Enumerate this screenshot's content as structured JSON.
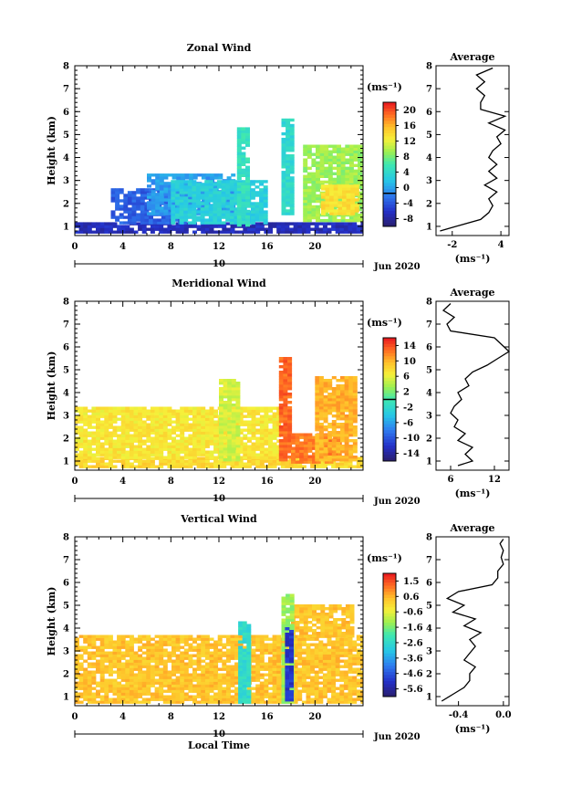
{
  "chart_data": [
    {
      "type": "heatmap",
      "title": "Zonal Wind",
      "ylabel": "Height (km)",
      "xlabel": "",
      "xlim": [
        0,
        24
      ],
      "ylim": [
        0.6,
        8
      ],
      "xticks": [
        0,
        4,
        8,
        12,
        16,
        20
      ],
      "yticks": [
        1,
        2,
        3,
        4,
        5,
        6,
        7,
        8
      ],
      "date_label": "10",
      "date_right_label": "Jun 2020",
      "colorbar": {
        "label": "(ms⁻¹)",
        "range": [
          -8,
          22
        ],
        "ticks": [
          "20",
          "16",
          "12",
          "8",
          "4",
          "0",
          "-4",
          "-8"
        ],
        "marker": 0
      },
      "regions": [
        {
          "t0": 0,
          "t1": 24,
          "h0": 0.7,
          "h1": 1.1,
          "v": -5
        },
        {
          "t0": 3,
          "t1": 9,
          "h0": 1.1,
          "h1": 2.6,
          "v": -2
        },
        {
          "t0": 6,
          "t1": 13,
          "h0": 1.5,
          "h1": 3.2,
          "v": 1
        },
        {
          "t0": 8,
          "t1": 16,
          "h0": 1.1,
          "h1": 3.0,
          "v": 4
        },
        {
          "t0": 13.5,
          "t1": 14.5,
          "h0": 1.0,
          "h1": 5.3,
          "v": 6
        },
        {
          "t0": 17.2,
          "t1": 18.2,
          "h0": 1.5,
          "h1": 5.6,
          "v": 5
        },
        {
          "t0": 19,
          "t1": 24,
          "h0": 1.2,
          "h1": 4.5,
          "v": 10
        },
        {
          "t0": 20.5,
          "t1": 23.5,
          "h0": 1.5,
          "h1": 2.8,
          "v": 14
        }
      ],
      "profile": {
        "title": "Average",
        "xlabel": "(ms⁻¹)",
        "xlim": [
          -4,
          5
        ],
        "xticks": [
          -2,
          4
        ],
        "h": [
          0.8,
          1.0,
          1.3,
          1.6,
          1.9,
          2.2,
          2.5,
          2.8,
          3.1,
          3.4,
          3.7,
          4.0,
          4.3,
          4.6,
          4.9,
          5.2,
          5.5,
          5.8,
          6.1,
          6.4,
          6.7,
          7.0,
          7.3,
          7.6,
          7.9
        ],
        "values": [
          -3.5,
          -1.5,
          1.5,
          2.5,
          3.0,
          2.5,
          3.5,
          2.0,
          3.5,
          2.5,
          3.5,
          2.5,
          3.0,
          4.0,
          3.5,
          4.5,
          2.5,
          4.5,
          1.5,
          1.5,
          2.0,
          1.0,
          2.0,
          1.0,
          3.0
        ]
      }
    },
    {
      "type": "heatmap",
      "title": "Meridional Wind",
      "ylabel": "Height (km)",
      "xlabel": "",
      "xlim": [
        0,
        24
      ],
      "ylim": [
        0.6,
        8
      ],
      "xticks": [
        0,
        4,
        8,
        12,
        16,
        20
      ],
      "yticks": [
        1,
        2,
        3,
        4,
        5,
        6,
        7,
        8
      ],
      "date_label": "10",
      "date_right_label": "Jun 2020",
      "colorbar": {
        "label": "(ms⁻¹)",
        "range": [
          -16,
          16
        ],
        "ticks": [
          "14",
          "10",
          "6",
          "2",
          "-2",
          "-6",
          "-10",
          "-14"
        ],
        "marker": 0
      },
      "regions": [
        {
          "t0": 0,
          "t1": 24,
          "h0": 0.7,
          "h1": 1.1,
          "v": 8
        },
        {
          "t0": 0,
          "t1": 17,
          "h0": 1.1,
          "h1": 3.3,
          "v": 7
        },
        {
          "t0": 12,
          "t1": 13.5,
          "h0": 1.0,
          "h1": 4.5,
          "v": 5
        },
        {
          "t0": 17,
          "t1": 18,
          "h0": 1.0,
          "h1": 5.5,
          "v": 13
        },
        {
          "t0": 18,
          "t1": 22,
          "h0": 0.9,
          "h1": 2.2,
          "v": 12
        },
        {
          "t0": 20,
          "t1": 23.5,
          "h0": 1.0,
          "h1": 4.7,
          "v": 10
        }
      ],
      "profile": {
        "title": "Average",
        "xlabel": "(ms⁻¹)",
        "xlim": [
          4,
          14
        ],
        "xticks": [
          6,
          12
        ],
        "h": [
          0.8,
          1.0,
          1.3,
          1.6,
          1.9,
          2.2,
          2.5,
          2.8,
          3.1,
          3.4,
          3.7,
          4.0,
          4.3,
          4.6,
          4.9,
          5.2,
          5.5,
          5.8,
          6.1,
          6.4,
          6.7,
          7.0,
          7.3,
          7.6,
          7.9
        ],
        "values": [
          7,
          9,
          8,
          9,
          7,
          8,
          6.5,
          7,
          6,
          6.5,
          7.5,
          7,
          8.5,
          8,
          9,
          11,
          12.5,
          14,
          13,
          12,
          6,
          5.5,
          6.5,
          5,
          6
        ]
      }
    },
    {
      "type": "heatmap",
      "title": "Vertical Wind",
      "ylabel": "Height (km)",
      "xlabel": "Local Time",
      "xlim": [
        0,
        24
      ],
      "ylim": [
        0.6,
        8
      ],
      "xticks": [
        0,
        4,
        8,
        12,
        16,
        20
      ],
      "yticks": [
        1,
        2,
        3,
        4,
        5,
        6,
        7,
        8
      ],
      "date_label": "10",
      "date_right_label": "Jun 2020",
      "colorbar": {
        "label": "(ms⁻¹)",
        "range": [
          -6,
          2
        ],
        "ticks": [
          "1.5",
          "0.6",
          "-0.6",
          "-1.6",
          "-2.6",
          "-3.6",
          "-4.6",
          "-5.6"
        ],
        "marker": null
      },
      "regions": [
        {
          "t0": 0,
          "t1": 24,
          "h0": 0.7,
          "h1": 3.6,
          "v": 0.3
        },
        {
          "t0": 18,
          "t1": 23,
          "h0": 3.6,
          "h1": 5.0,
          "v": 0.3
        },
        {
          "t0": 13.6,
          "t1": 14.5,
          "h0": 0.7,
          "h1": 4.2,
          "v": -2.5
        },
        {
          "t0": 17.2,
          "t1": 18.2,
          "h0": 0.7,
          "h1": 5.5,
          "v": -1.2
        },
        {
          "t0": 17.5,
          "t1": 18.0,
          "h0": 0.8,
          "h1": 4.0,
          "v": -5.0
        }
      ],
      "profile": {
        "title": "Average",
        "xlabel": "(ms⁻¹)",
        "xlim": [
          -0.6,
          0.05
        ],
        "xticks": [
          -0.4,
          0.0
        ],
        "h": [
          0.8,
          1.1,
          1.4,
          1.7,
          2.0,
          2.3,
          2.6,
          2.9,
          3.2,
          3.5,
          3.8,
          4.1,
          4.4,
          4.7,
          5.0,
          5.3,
          5.6,
          5.9,
          6.2,
          6.5,
          6.8,
          7.1,
          7.4,
          7.7,
          7.9
        ],
        "values": [
          -0.55,
          -0.45,
          -0.35,
          -0.3,
          -0.3,
          -0.25,
          -0.35,
          -0.3,
          -0.25,
          -0.3,
          -0.2,
          -0.35,
          -0.25,
          -0.45,
          -0.35,
          -0.5,
          -0.4,
          -0.1,
          -0.05,
          -0.05,
          0.0,
          -0.02,
          0.0,
          -0.03,
          0.0
        ]
      }
    }
  ]
}
